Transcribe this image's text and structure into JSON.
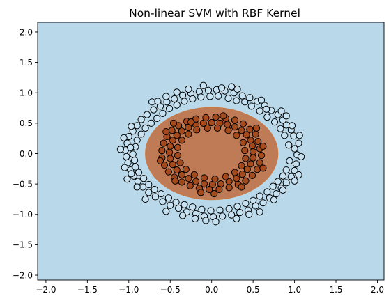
{
  "chart_data": {
    "type": "scatter",
    "title": "Non-linear SVM with RBF Kernel",
    "xlabel": "",
    "ylabel": "",
    "xlim": [
      -2.1,
      2.08
    ],
    "ylim": [
      -2.08,
      2.16
    ],
    "xticks": [
      "−2.0",
      "−1.5",
      "−1.0",
      "−0.5",
      "0.0",
      "0.5",
      "1.0",
      "1.5",
      "2.0"
    ],
    "xtick_values": [
      -2.0,
      -1.5,
      -1.0,
      -0.5,
      0.0,
      0.5,
      1.0,
      1.5,
      2.0
    ],
    "yticks": [
      "−2.0",
      "−1.5",
      "−1.0",
      "−0.5",
      "0.0",
      "0.5",
      "1.0",
      "1.5",
      "2.0"
    ],
    "ytick_values": [
      -2.0,
      -1.5,
      -1.0,
      -0.5,
      0.0,
      0.5,
      1.0,
      1.5,
      2.0
    ],
    "grid": false,
    "colors": {
      "background_region": "#b9d8e9",
      "inner_region": "#bf7b55",
      "inner_region_edge": "#c97a45",
      "outer_points": "#c6e2f2",
      "inner_points": "#a44a1c",
      "point_edge": "#000000"
    },
    "decision_region": {
      "shape": "ellipse",
      "center": [
        0.0,
        0.0
      ],
      "radius_x": 0.8,
      "radius_y": 0.76,
      "class": "inner"
    },
    "series": [
      {
        "class": "outer",
        "points": [
          [
            1.0,
            0.08
          ],
          [
            1.03,
            -0.02
          ],
          [
            1.05,
            0.17
          ],
          [
            0.99,
            0.29
          ],
          [
            0.96,
            0.39
          ],
          [
            0.9,
            0.47
          ],
          [
            0.86,
            0.55
          ],
          [
            0.8,
            0.64
          ],
          [
            0.72,
            0.71
          ],
          [
            0.64,
            0.79
          ],
          [
            0.55,
            0.86
          ],
          [
            0.46,
            0.92
          ],
          [
            0.37,
            0.95
          ],
          [
            0.27,
            1.0
          ],
          [
            0.16,
            1.03
          ],
          [
            0.06,
            1.05
          ],
          [
            -0.04,
            1.04
          ],
          [
            -0.15,
            1.02
          ],
          [
            -0.25,
            0.99
          ],
          [
            -0.35,
            0.96
          ],
          [
            -0.45,
            0.9
          ],
          [
            -0.54,
            0.85
          ],
          [
            -0.62,
            0.78
          ],
          [
            -0.7,
            0.72
          ],
          [
            -0.78,
            0.64
          ],
          [
            -0.85,
            0.56
          ],
          [
            -0.9,
            0.46
          ],
          [
            -0.95,
            0.37
          ],
          [
            -1.0,
            0.28
          ],
          [
            -1.02,
            0.17
          ],
          [
            -1.04,
            0.06
          ],
          [
            -1.03,
            -0.05
          ],
          [
            -1.01,
            -0.15
          ],
          [
            -0.98,
            -0.27
          ],
          [
            -0.94,
            -0.37
          ],
          [
            -0.89,
            -0.46
          ],
          [
            -0.83,
            -0.55
          ],
          [
            -0.76,
            -0.64
          ],
          [
            -0.68,
            -0.71
          ],
          [
            -0.59,
            -0.79
          ],
          [
            -0.5,
            -0.85
          ],
          [
            -0.4,
            -0.9
          ],
          [
            -0.3,
            -0.96
          ],
          [
            -0.19,
            -0.99
          ],
          [
            -0.09,
            -1.03
          ],
          [
            0.02,
            -1.04
          ],
          [
            0.13,
            -1.03
          ],
          [
            0.24,
            -1.01
          ],
          [
            0.34,
            -0.97
          ],
          [
            0.44,
            -0.93
          ],
          [
            0.53,
            -0.86
          ],
          [
            0.62,
            -0.81
          ],
          [
            0.7,
            -0.73
          ],
          [
            0.78,
            -0.66
          ],
          [
            0.84,
            -0.57
          ],
          [
            0.9,
            -0.48
          ],
          [
            0.96,
            -0.38
          ],
          [
            1.0,
            -0.28
          ],
          [
            1.02,
            -0.17
          ],
          [
            1.08,
            -0.05
          ],
          [
            0.93,
            0.14
          ],
          [
            0.94,
            -0.12
          ],
          [
            0.88,
            0.3
          ],
          [
            0.83,
            0.41
          ],
          [
            0.76,
            0.52
          ],
          [
            0.67,
            0.6
          ],
          [
            0.58,
            0.7
          ],
          [
            0.48,
            0.78
          ],
          [
            0.4,
            0.85
          ],
          [
            0.3,
            0.87
          ],
          [
            0.2,
            0.91
          ],
          [
            0.08,
            0.95
          ],
          [
            -0.02,
            0.94
          ],
          [
            -0.13,
            0.93
          ],
          [
            -0.23,
            0.9
          ],
          [
            -0.33,
            0.86
          ],
          [
            -0.42,
            0.8
          ],
          [
            -0.51,
            0.74
          ],
          [
            -0.59,
            0.66
          ],
          [
            -0.66,
            0.58
          ],
          [
            -0.73,
            0.5
          ],
          [
            -0.8,
            0.42
          ],
          [
            -0.85,
            0.32
          ],
          [
            -0.9,
            0.22
          ],
          [
            -0.92,
            0.11
          ],
          [
            -0.95,
            -0.01
          ],
          [
            -0.93,
            -0.11
          ],
          [
            -0.92,
            -0.22
          ],
          [
            -0.88,
            -0.31
          ],
          [
            -0.82,
            -0.41
          ],
          [
            -0.76,
            -0.51
          ],
          [
            -0.69,
            -0.59
          ],
          [
            -0.61,
            -0.66
          ],
          [
            -0.52,
            -0.73
          ],
          [
            -0.43,
            -0.8
          ],
          [
            -0.33,
            -0.84
          ],
          [
            -0.23,
            -0.88
          ],
          [
            -0.12,
            -0.92
          ],
          [
            -0.01,
            -0.94
          ],
          [
            0.1,
            -0.93
          ],
          [
            0.21,
            -0.91
          ],
          [
            0.31,
            -0.87
          ],
          [
            0.41,
            -0.82
          ],
          [
            0.5,
            -0.77
          ],
          [
            0.58,
            -0.7
          ],
          [
            0.67,
            -0.63
          ],
          [
            0.74,
            -0.54
          ],
          [
            0.8,
            -0.46
          ],
          [
            0.86,
            -0.37
          ],
          [
            0.9,
            -0.27
          ],
          [
            1.06,
            0.3
          ],
          [
            0.84,
            0.7
          ],
          [
            0.6,
            0.88
          ],
          [
            0.31,
            1.06
          ],
          [
            -0.1,
            1.12
          ],
          [
            -0.42,
            1.01
          ],
          [
            -0.72,
            0.85
          ],
          [
            -0.97,
            0.45
          ],
          [
            -1.1,
            0.07
          ],
          [
            -1.02,
            -0.42
          ],
          [
            -0.8,
            -0.75
          ],
          [
            -0.35,
            -1.02
          ],
          [
            0.05,
            -1.12
          ],
          [
            0.45,
            -1.0
          ],
          [
            0.75,
            -0.76
          ],
          [
            1.0,
            -0.45
          ],
          [
            0.24,
            1.1
          ],
          [
            -0.28,
            1.06
          ],
          [
            -0.9,
            -0.55
          ],
          [
            -0.07,
            -1.1
          ],
          [
            0.97,
            0.46
          ],
          [
            0.66,
            0.73
          ],
          [
            0.12,
            1.08
          ],
          [
            -0.55,
            0.94
          ],
          [
            -0.98,
            0.1
          ],
          [
            -0.97,
            -0.33
          ],
          [
            -0.55,
            -0.95
          ],
          [
            0.3,
            -1.07
          ],
          [
            0.86,
            -0.6
          ],
          [
            1.05,
            -0.35
          ],
          [
            0.9,
            0.62
          ],
          [
            -0.65,
            0.86
          ],
          [
            -1.06,
            0.26
          ],
          [
            -1.05,
            -0.23
          ],
          [
            -0.2,
            -1.07
          ],
          [
            0.58,
            -0.96
          ]
        ]
      },
      {
        "class": "inner",
        "points": [
          [
            0.5,
            0.03
          ],
          [
            0.49,
            0.13
          ],
          [
            0.47,
            0.22
          ],
          [
            0.42,
            0.31
          ],
          [
            0.36,
            0.38
          ],
          [
            0.28,
            0.44
          ],
          [
            0.19,
            0.48
          ],
          [
            0.1,
            0.5
          ],
          [
            0.0,
            0.51
          ],
          [
            -0.1,
            0.5
          ],
          [
            -0.19,
            0.47
          ],
          [
            -0.28,
            0.43
          ],
          [
            -0.36,
            0.37
          ],
          [
            -0.42,
            0.3
          ],
          [
            -0.47,
            0.22
          ],
          [
            -0.5,
            0.12
          ],
          [
            -0.51,
            0.02
          ],
          [
            -0.5,
            -0.08
          ],
          [
            -0.47,
            -0.18
          ],
          [
            -0.42,
            -0.27
          ],
          [
            -0.36,
            -0.35
          ],
          [
            -0.28,
            -0.41
          ],
          [
            -0.19,
            -0.46
          ],
          [
            -0.09,
            -0.5
          ],
          [
            0.01,
            -0.51
          ],
          [
            0.11,
            -0.5
          ],
          [
            0.21,
            -0.46
          ],
          [
            0.3,
            -0.41
          ],
          [
            0.37,
            -0.34
          ],
          [
            0.43,
            -0.26
          ],
          [
            0.47,
            -0.17
          ],
          [
            0.5,
            -0.07
          ],
          [
            0.58,
            0.08
          ],
          [
            0.56,
            0.2
          ],
          [
            0.53,
            0.32
          ],
          [
            0.46,
            0.4
          ],
          [
            0.38,
            0.49
          ],
          [
            0.28,
            0.55
          ],
          [
            0.17,
            0.58
          ],
          [
            0.05,
            0.6
          ],
          [
            -0.07,
            0.59
          ],
          [
            -0.19,
            0.57
          ],
          [
            -0.3,
            0.53
          ],
          [
            -0.4,
            0.46
          ],
          [
            -0.48,
            0.38
          ],
          [
            -0.54,
            0.28
          ],
          [
            -0.58,
            0.17
          ],
          [
            -0.6,
            0.05
          ],
          [
            -0.6,
            -0.07
          ],
          [
            -0.57,
            -0.19
          ],
          [
            -0.52,
            -0.3
          ],
          [
            -0.45,
            -0.39
          ],
          [
            -0.36,
            -0.47
          ],
          [
            -0.26,
            -0.53
          ],
          [
            -0.15,
            -0.57
          ],
          [
            -0.03,
            -0.59
          ],
          [
            0.09,
            -0.59
          ],
          [
            0.21,
            -0.56
          ],
          [
            0.32,
            -0.51
          ],
          [
            0.41,
            -0.45
          ],
          [
            0.49,
            -0.36
          ],
          [
            0.55,
            -0.26
          ],
          [
            0.58,
            -0.15
          ],
          [
            0.6,
            -0.03
          ],
          [
            0.4,
            0.05
          ],
          [
            0.38,
            0.18
          ],
          [
            0.3,
            0.3
          ],
          [
            0.2,
            0.38
          ],
          [
            0.07,
            0.42
          ],
          [
            -0.05,
            0.42
          ],
          [
            -0.18,
            0.39
          ],
          [
            -0.28,
            0.32
          ],
          [
            -0.36,
            0.22
          ],
          [
            -0.41,
            0.1
          ],
          [
            -0.41,
            -0.03
          ],
          [
            -0.38,
            -0.15
          ],
          [
            -0.31,
            -0.26
          ],
          [
            -0.21,
            -0.35
          ],
          [
            -0.09,
            -0.4
          ],
          [
            0.04,
            -0.42
          ],
          [
            0.17,
            -0.38
          ],
          [
            0.28,
            -0.31
          ],
          [
            0.36,
            -0.2
          ],
          [
            0.41,
            -0.08
          ],
          [
            0.54,
            0.42
          ],
          [
            -0.25,
            0.52
          ],
          [
            -0.55,
            0.36
          ],
          [
            -0.62,
            -0.12
          ],
          [
            -0.44,
            -0.45
          ],
          [
            0.03,
            -0.66
          ],
          [
            0.36,
            -0.55
          ],
          [
            0.62,
            0.12
          ],
          [
            0.14,
            0.62
          ],
          [
            -0.13,
            -0.64
          ],
          [
            -0.46,
            0.5
          ],
          [
            0.62,
            -0.24
          ]
        ]
      }
    ]
  }
}
